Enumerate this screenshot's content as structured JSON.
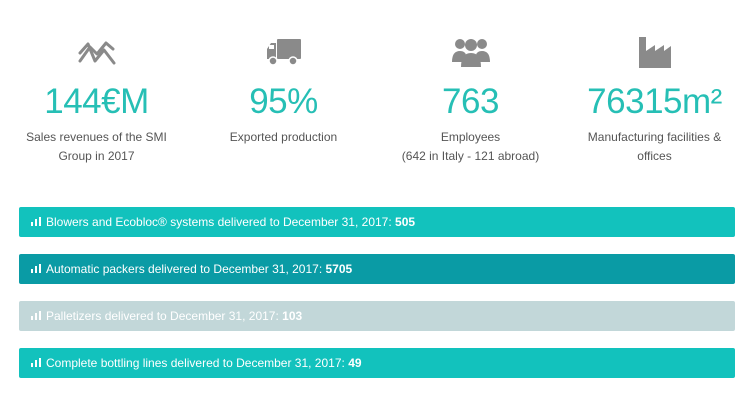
{
  "stats": [
    {
      "icon": "trend-chart-icon",
      "value": "144€M",
      "label": "Sales revenues of the SMI Group in 2017"
    },
    {
      "icon": "truck-icon",
      "value": "95%",
      "label": "Exported production"
    },
    {
      "icon": "people-group-icon",
      "value": "763",
      "label_line1": "Employees",
      "label_line2": "(642 in Italy - 121 abroad)"
    },
    {
      "icon": "factory-icon",
      "value": "76315m²",
      "label": "Manufacturing facilities & offices"
    }
  ],
  "bars": [
    {
      "icon": "bar-chart-icon",
      "text": "Blowers and Ecobloc® systems delivered to December 31, 2017: ",
      "count": "505",
      "color": "#12c2bd"
    },
    {
      "icon": "bar-chart-icon",
      "text": "Automatic packers delivered to December 31, 2017: ",
      "count": "5705",
      "color": "#0a9ba5"
    },
    {
      "icon": "bar-chart-icon",
      "text": "Palletizers delivered to December 31, 2017: ",
      "count": "103",
      "color": "#c2d7d9"
    },
    {
      "icon": "bar-chart-icon",
      "text": "Complete bottling lines delivered to December 31, 2017: ",
      "count": "49",
      "color": "#12c2bd"
    }
  ]
}
